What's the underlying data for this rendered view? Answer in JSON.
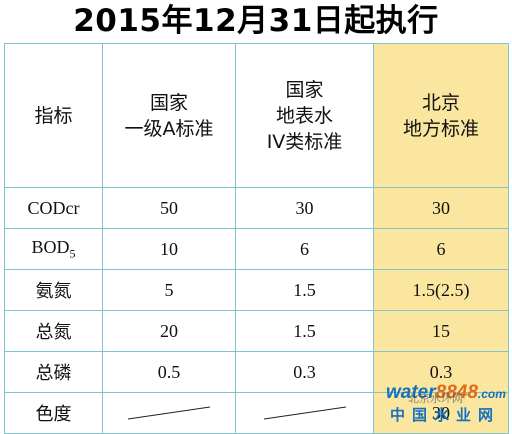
{
  "title": "2015年12月31日起执行",
  "headers": {
    "indicator": "指标",
    "col1": [
      "国家",
      "一级A标准"
    ],
    "col2": [
      "国家",
      "地表水",
      "IV类标准"
    ],
    "col3": [
      "北京",
      "地方标准"
    ]
  },
  "rows": [
    {
      "label": "CODcr",
      "v1": "50",
      "v2": "30",
      "v3": "30"
    },
    {
      "label": "BOD",
      "label_sub": "5",
      "v1": "10",
      "v2": "6",
      "v3": "6"
    },
    {
      "label": "氨氮",
      "v1": "5",
      "v2": "1.5",
      "v3": "1.5(2.5)"
    },
    {
      "label": "总氮",
      "v1": "20",
      "v2": "1.5",
      "v3": "15"
    },
    {
      "label": "总磷",
      "v1": "0.5",
      "v2": "0.3",
      "v3": "0.3"
    },
    {
      "label": "色度",
      "v1": "",
      "v2": "",
      "v3": "30"
    }
  ],
  "colors": {
    "highlight": "#fbe6a0",
    "border": "#7fc4cf",
    "red_value": "#e0201b",
    "watermark_blue": "#1470c0",
    "watermark_orange": "#e06a1a"
  },
  "watermark": {
    "brand_a": "water",
    "brand_b": "8848",
    "brand_c": ".com",
    "site_name": "中国水业网",
    "overlay": "北京水环网"
  }
}
